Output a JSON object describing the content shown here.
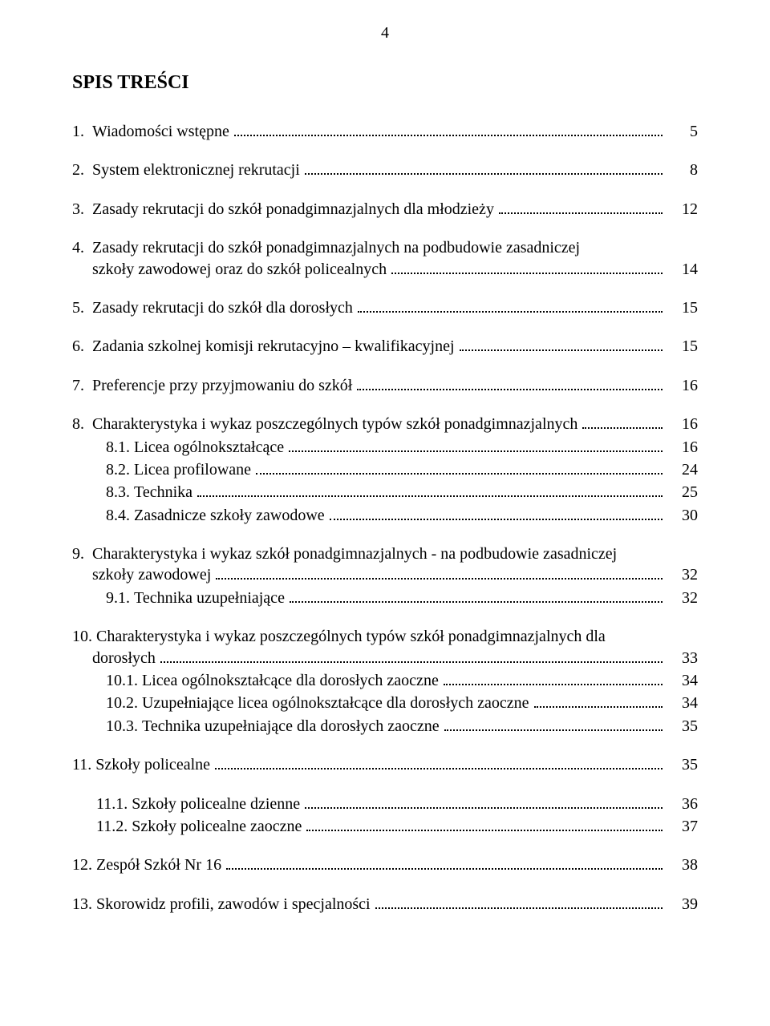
{
  "page_number": "4",
  "heading": "SPIS TREŚCI",
  "font": {
    "family": "Times New Roman",
    "body_size_pt": 15,
    "heading_size_pt": 18,
    "heading_weight": "bold"
  },
  "colors": {
    "text": "#000000",
    "background": "#ffffff"
  },
  "toc": {
    "e1": {
      "num": "1.",
      "label": "Wiadomości wstępne",
      "page": "5"
    },
    "e2": {
      "num": "2.",
      "label": "System elektronicznej rekrutacji",
      "page": "8"
    },
    "e3": {
      "num": "3.",
      "label": "Zasady rekrutacji do szkół ponadgimnazjalnych dla młodzieży",
      "page": "12"
    },
    "e4a": {
      "num": "4.",
      "label": "Zasady rekrutacji do szkół ponadgimnazjalnych na podbudowie zasadniczej"
    },
    "e4b": {
      "num": "",
      "label": "szkoły zawodowej oraz do szkół policealnych",
      "page": "14"
    },
    "e5": {
      "num": "5.",
      "label": "Zasady rekrutacji do szkół dla dorosłych",
      "page": "15"
    },
    "e6": {
      "num": "6.",
      "label": "Zadania szkolnej komisji rekrutacyjno – kwalifikacyjnej",
      "page": "15"
    },
    "e7": {
      "num": "7.",
      "label": "Preferencje przy przyjmowaniu do szkół",
      "page": "16"
    },
    "e8": {
      "num": "8.",
      "label": "Charakterystyka i wykaz poszczególnych typów szkół ponadgimnazjalnych",
      "page": "16"
    },
    "e81": {
      "num": "8.1.",
      "label": "Licea ogólnokształcące",
      "page": "16"
    },
    "e82": {
      "num": "8.2.",
      "label": "Licea profilowane",
      "page": "24"
    },
    "e83": {
      "num": "8.3.",
      "label": "Technika",
      "page": "25"
    },
    "e84": {
      "num": "8.4.",
      "label": "Zasadnicze szkoły zawodowe",
      "page": "30"
    },
    "e9a": {
      "num": "9.",
      "label": "Charakterystyka i wykaz szkół ponadgimnazjalnych - na podbudowie zasadniczej"
    },
    "e9b": {
      "num": "",
      "label": "szkoły zawodowej",
      "page": "32"
    },
    "e91": {
      "num": "9.1.",
      "label": "Technika uzupełniające",
      "page": "32"
    },
    "e10a": {
      "num": "10.",
      "label": "Charakterystyka i wykaz poszczególnych typów szkół ponadgimnazjalnych dla"
    },
    "e10b": {
      "num": "",
      "label": "dorosłych",
      "page": "33"
    },
    "e101": {
      "num": "10.1.",
      "label": "Licea ogólnokształcące dla dorosłych zaoczne",
      "page": "34"
    },
    "e102": {
      "num": "10.2.",
      "label": "Uzupełniające licea ogólnokształcące dla dorosłych zaoczne",
      "page": "34"
    },
    "e103": {
      "num": "10.3.",
      "label": "Technika uzupełniające dla dorosłych zaoczne",
      "page": "35"
    },
    "e11": {
      "num": "11.",
      "label": "Szkoły policealne",
      "page": "35"
    },
    "e111": {
      "num": "11.1.",
      "label": "Szkoły policealne dzienne",
      "page": "36"
    },
    "e112": {
      "num": "11.2.",
      "label": "Szkoły policealne zaoczne",
      "page": "37"
    },
    "e12": {
      "num": "12.",
      "label": "Zespół Szkół Nr 16",
      "page": "38"
    },
    "e13": {
      "num": "13.",
      "label": "Skorowidz profili, zawodów i specjalności",
      "page": "39"
    }
  }
}
